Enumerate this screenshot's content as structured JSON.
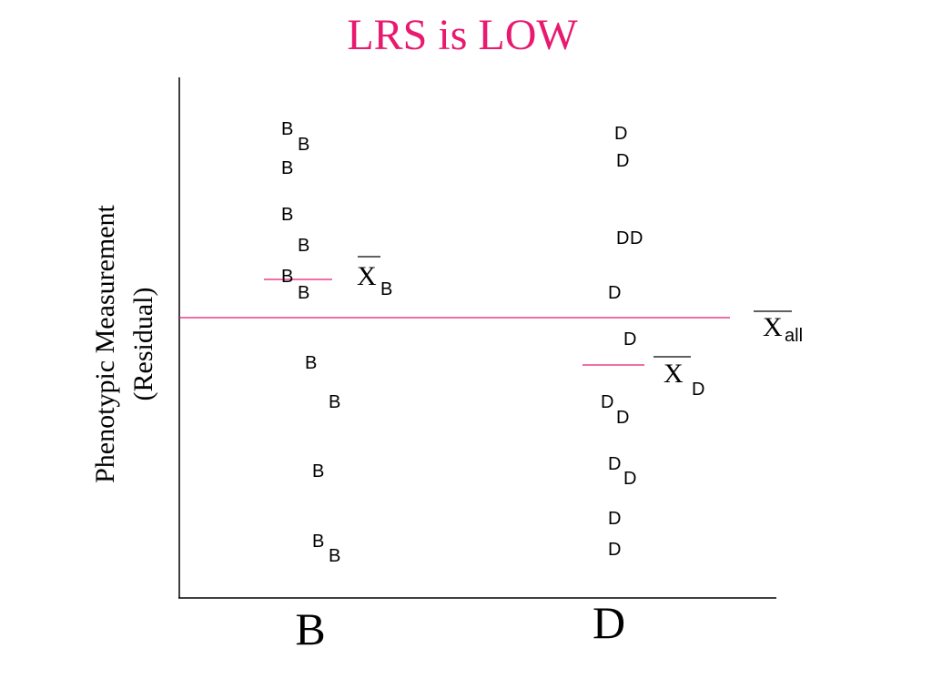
{
  "title": "LRS is LOW",
  "y_axis_label": [
    "Phenotypic Measurement",
    "(Residual)"
  ],
  "groups": [
    {
      "label": "B",
      "points": [
        "B",
        "B",
        "B",
        "B",
        "B",
        "B",
        "B",
        "B",
        "B",
        "B",
        "B",
        "B"
      ],
      "mean": {
        "symbol": "X",
        "subscript": "B"
      }
    },
    {
      "label": "D",
      "points": [
        "D",
        "D",
        "D",
        "D",
        "D",
        "D",
        "D",
        "D",
        "D",
        "D",
        "D",
        "D"
      ],
      "mean": {
        "symbol": "X",
        "subscript": "D"
      }
    }
  ],
  "overall_mean": {
    "symbol": "X",
    "subscript": "all"
  }
}
